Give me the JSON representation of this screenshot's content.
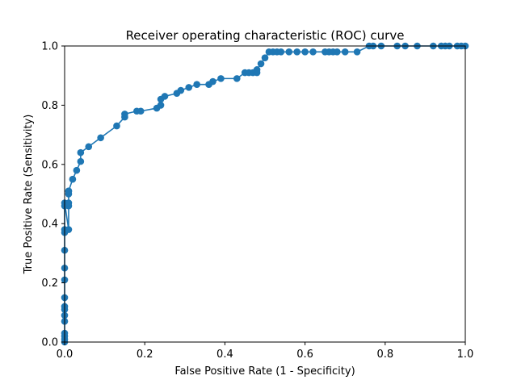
{
  "chart_data": {
    "type": "line",
    "title": "Receiver operating characteristic (ROC) curve",
    "xlabel": "False Positive Rate (1 - Specificity)",
    "ylabel": "True Positive Rate (Sensitivity)",
    "xlim": [
      0,
      1
    ],
    "ylim": [
      0,
      1
    ],
    "xticks": [
      "0.0",
      "0.2",
      "0.4",
      "0.6",
      "0.8",
      "1.0"
    ],
    "yticks": [
      "0.0",
      "0.2",
      "0.4",
      "0.6",
      "0.8",
      "1.0"
    ],
    "grid": false,
    "line_color": "#1f77b4",
    "marker": "circle",
    "series": [
      {
        "x": [
          0.0,
          0.0,
          0.0,
          0.0,
          0.0,
          0.0,
          0.0,
          0.0,
          0.0,
          0.0,
          0.0,
          0.0,
          0.0,
          0.0,
          0.0,
          0.0,
          0.01,
          0.01,
          0.01,
          0.01,
          0.01,
          0.01,
          0.02,
          0.03,
          0.04,
          0.04,
          0.06,
          0.09,
          0.13,
          0.15,
          0.15,
          0.18,
          0.19,
          0.23,
          0.24,
          0.24,
          0.25,
          0.28,
          0.29,
          0.31,
          0.33,
          0.36,
          0.37,
          0.39,
          0.43,
          0.45,
          0.46,
          0.47,
          0.48,
          0.48,
          0.49,
          0.5,
          0.51,
          0.52,
          0.53,
          0.54,
          0.56,
          0.58,
          0.6,
          0.62,
          0.65,
          0.66,
          0.67,
          0.68,
          0.7,
          0.73,
          0.76,
          0.77,
          0.79,
          0.83,
          0.85,
          0.88,
          0.92,
          0.94,
          0.95,
          0.96,
          0.98,
          0.99,
          1.0
        ],
        "y": [
          0.0,
          0.01,
          0.02,
          0.03,
          0.07,
          0.09,
          0.11,
          0.12,
          0.15,
          0.21,
          0.25,
          0.31,
          0.37,
          0.38,
          0.46,
          0.47,
          0.38,
          0.46,
          0.47,
          0.5,
          0.51,
          0.51,
          0.55,
          0.58,
          0.61,
          0.64,
          0.66,
          0.69,
          0.73,
          0.76,
          0.77,
          0.78,
          0.78,
          0.79,
          0.8,
          0.82,
          0.83,
          0.84,
          0.85,
          0.86,
          0.87,
          0.87,
          0.88,
          0.89,
          0.89,
          0.91,
          0.91,
          0.91,
          0.91,
          0.92,
          0.94,
          0.96,
          0.98,
          0.98,
          0.98,
          0.98,
          0.98,
          0.98,
          0.98,
          0.98,
          0.98,
          0.98,
          0.98,
          0.98,
          0.98,
          0.98,
          1.0,
          1.0,
          1.0,
          1.0,
          1.0,
          1.0,
          1.0,
          1.0,
          1.0,
          1.0,
          1.0,
          1.0,
          1.0
        ]
      }
    ]
  }
}
